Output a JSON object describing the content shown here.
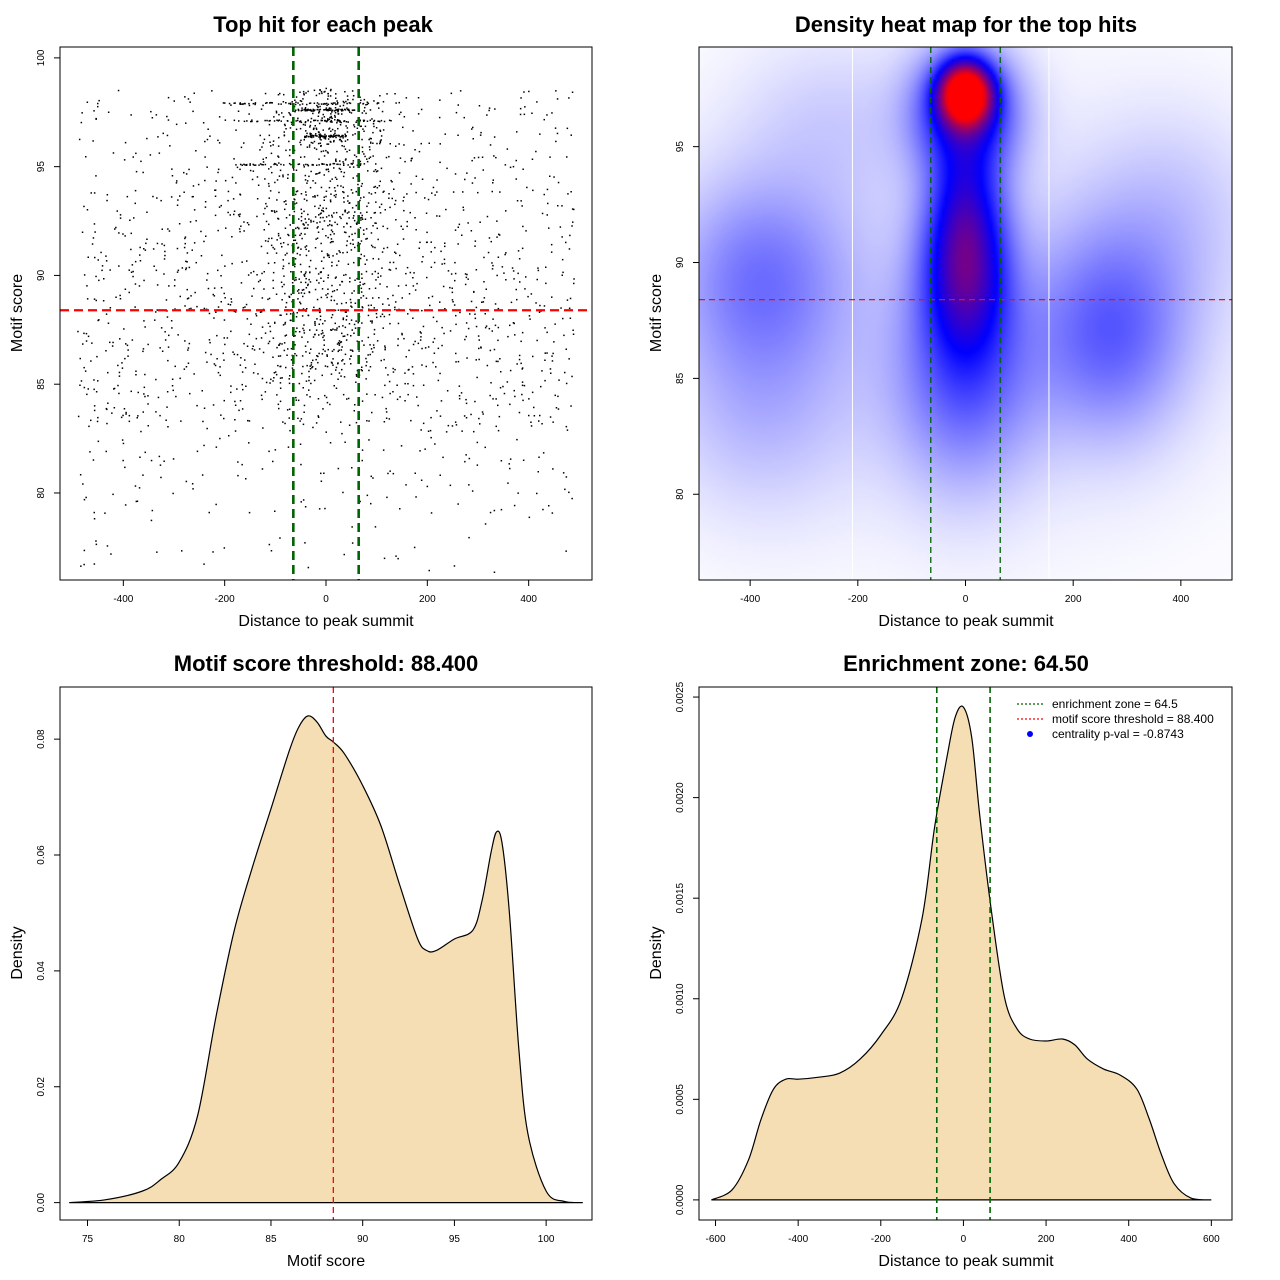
{
  "chart_data": [
    {
      "type": "scatter",
      "title": "Top hit for each peak",
      "xlabel": "Distance to peak summit",
      "ylabel": "Motif score",
      "xlim": [
        -525,
        525
      ],
      "ylim": [
        76,
        100.5
      ],
      "xticks": [
        -400,
        -200,
        0,
        200,
        400
      ],
      "yticks": [
        80,
        85,
        90,
        95,
        100
      ],
      "threshold": 88.4,
      "zone": [
        -64.5,
        64.5
      ],
      "points_note": "approx. 2500 top hits; density concentrated near 0 distance and scores 95-98"
    },
    {
      "type": "heatmap",
      "title": "Density heat map for the top hits",
      "xlabel": "Distance to peak summit",
      "ylabel": "Motif score",
      "xlim": [
        -495,
        495
      ],
      "ylim": [
        76.3,
        99.3
      ],
      "xticks": [
        -400,
        -200,
        0,
        200,
        400
      ],
      "yticks": [
        80,
        85,
        90,
        95
      ],
      "threshold": 88.4,
      "zone": [
        -64.5,
        64.5
      ],
      "white_lines": [
        -210,
        155
      ],
      "colors": [
        "#ffffff",
        "#0000ff",
        "#ff0000"
      ],
      "blobs": [
        {
          "x": 0,
          "y": 97.3,
          "sx": 32,
          "sy": 0.9,
          "w": 2.4
        },
        {
          "x": 0,
          "y": 96.5,
          "sx": 65,
          "sy": 1.8,
          "w": 1.0
        },
        {
          "x": 0,
          "y": 89.5,
          "sx": 55,
          "sy": 2.5,
          "w": 1.05
        },
        {
          "x": 0,
          "y": 92.5,
          "sx": 45,
          "sy": 2.2,
          "w": 0.6
        },
        {
          "x": 0,
          "y": 85,
          "sx": 90,
          "sy": 3.2,
          "w": 0.5
        },
        {
          "x": 270,
          "y": 87,
          "sx": 95,
          "sy": 3.0,
          "w": 0.52
        },
        {
          "x": -380,
          "y": 89.5,
          "sx": 110,
          "sy": 2.8,
          "w": 0.42
        },
        {
          "x": -380,
          "y": 84,
          "sx": 120,
          "sy": 3.2,
          "w": 0.2
        },
        {
          "x": 380,
          "y": 92,
          "sx": 110,
          "sy": 3.0,
          "w": 0.15
        },
        {
          "x": 0,
          "y": 88,
          "sx": 350,
          "sy": 6.0,
          "w": 0.1
        },
        {
          "x": -250,
          "y": 96,
          "sx": 120,
          "sy": 2.5,
          "w": 0.12
        }
      ]
    },
    {
      "type": "area",
      "title": "Motif score threshold: 88.400",
      "xlabel": "Motif score",
      "ylabel": "Density",
      "xlim": [
        73.5,
        102.5
      ],
      "ylim": [
        -0.003,
        0.089
      ],
      "xticks": [
        75,
        80,
        85,
        90,
        95,
        100
      ],
      "yticks": [
        0.0,
        0.02,
        0.04,
        0.06,
        0.08
      ],
      "ytick_labels": [
        "0.00",
        "0.02",
        "0.04",
        "0.06",
        "0.08"
      ],
      "threshold": 88.4,
      "fill": "#f5deb3",
      "x": [
        74,
        76,
        78,
        79,
        80,
        81,
        82,
        83,
        84,
        85,
        86,
        86.5,
        87,
        87.5,
        88,
        88.4,
        89,
        90,
        91,
        92,
        93,
        93.5,
        94,
        95,
        96,
        96.5,
        97,
        97.3,
        97.6,
        98,
        98.5,
        99,
        100,
        101,
        102
      ],
      "y": [
        0,
        0.0005,
        0.002,
        0.004,
        0.007,
        0.015,
        0.032,
        0.047,
        0.058,
        0.068,
        0.078,
        0.082,
        0.084,
        0.083,
        0.0805,
        0.0795,
        0.0775,
        0.072,
        0.065,
        0.055,
        0.0455,
        0.0435,
        0.0435,
        0.0455,
        0.047,
        0.052,
        0.0605,
        0.064,
        0.062,
        0.05,
        0.027,
        0.012,
        0.002,
        0.0002,
        0
      ]
    },
    {
      "type": "area",
      "title": "Enrichment zone: 64.50",
      "xlabel": "Distance to peak summit",
      "ylabel": "Density",
      "xlim": [
        -640,
        650
      ],
      "ylim": [
        -0.0001,
        0.00255
      ],
      "xticks": [
        -600,
        -400,
        -200,
        0,
        200,
        400,
        600
      ],
      "yticks": [
        0.0,
        0.0005,
        0.001,
        0.0015,
        0.002,
        0.0025
      ],
      "ytick_labels": [
        "0.0000",
        "0.0005",
        "0.0010",
        "0.0015",
        "0.0020",
        "0.0025"
      ],
      "zone": [
        -64.5,
        64.5
      ],
      "fill": "#f5deb3",
      "x": [
        -610,
        -560,
        -520,
        -490,
        -460,
        -430,
        -400,
        -350,
        -300,
        -250,
        -200,
        -150,
        -100,
        -70,
        -40,
        -20,
        0,
        20,
        40,
        70,
        100,
        130,
        160,
        200,
        240,
        270,
        300,
        340,
        380,
        420,
        450,
        480,
        510,
        550,
        600
      ],
      "y": [
        0,
        5e-05,
        0.0002,
        0.0004,
        0.00055,
        0.0006,
        0.0006,
        0.00061,
        0.00063,
        0.0007,
        0.00082,
        0.001,
        0.0014,
        0.00185,
        0.0022,
        0.0024,
        0.00245,
        0.0023,
        0.0019,
        0.0014,
        0.001,
        0.00085,
        0.0008,
        0.00079,
        0.0008,
        0.00077,
        0.0007,
        0.00065,
        0.00062,
        0.00055,
        0.0004,
        0.00022,
        8e-05,
        1e-05,
        0
      ],
      "legend": [
        {
          "label": "enrichment zone = 64.5",
          "color": "#006400",
          "style": "dotted-line"
        },
        {
          "label": "motif score threshold = 88.400",
          "color": "#ff0000",
          "style": "dotted-line"
        },
        {
          "label": "centrality p-val = -0.8743",
          "color": "#0000ff",
          "style": "dot"
        }
      ],
      "legend_position": "top-right"
    }
  ]
}
